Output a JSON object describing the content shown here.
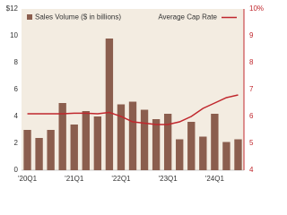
{
  "chart_data": {
    "type": "bar-line",
    "categories": [
      "'20Q1",
      null,
      null,
      null,
      "'21Q1",
      null,
      null,
      null,
      "'22Q1",
      null,
      null,
      null,
      "'23Q1",
      null,
      null,
      null,
      "'24Q1",
      null,
      null
    ],
    "series": [
      {
        "name": "Sales Volume ($ in billions)",
        "color": "#8b5e4e",
        "type": "bar",
        "values": [
          3.0,
          2.4,
          3.0,
          5.0,
          3.4,
          4.4,
          4.0,
          9.8,
          4.9,
          5.1,
          4.5,
          3.8,
          4.2,
          2.3,
          3.6,
          2.5,
          4.2,
          2.1,
          2.3
        ]
      },
      {
        "name": "Average Cap Rate",
        "color": "#c0272d",
        "type": "line",
        "axis": "y2",
        "values": [
          6.1,
          6.1,
          6.1,
          6.1,
          6.12,
          6.12,
          6.1,
          6.15,
          6.0,
          5.8,
          5.75,
          5.7,
          5.7,
          5.8,
          6.0,
          6.3,
          6.5,
          6.7,
          6.8
        ]
      }
    ],
    "ylim": [
      0,
      12
    ],
    "yticks": [
      0,
      2,
      4,
      6,
      8,
      10,
      {
        "value": 12,
        "label": "$12"
      }
    ],
    "y2lim": [
      4,
      10
    ],
    "y2ticks": [
      4,
      5,
      6,
      7,
      8,
      9,
      {
        "value": 10,
        "label": "10%"
      }
    ],
    "background": "#f3ece1"
  }
}
